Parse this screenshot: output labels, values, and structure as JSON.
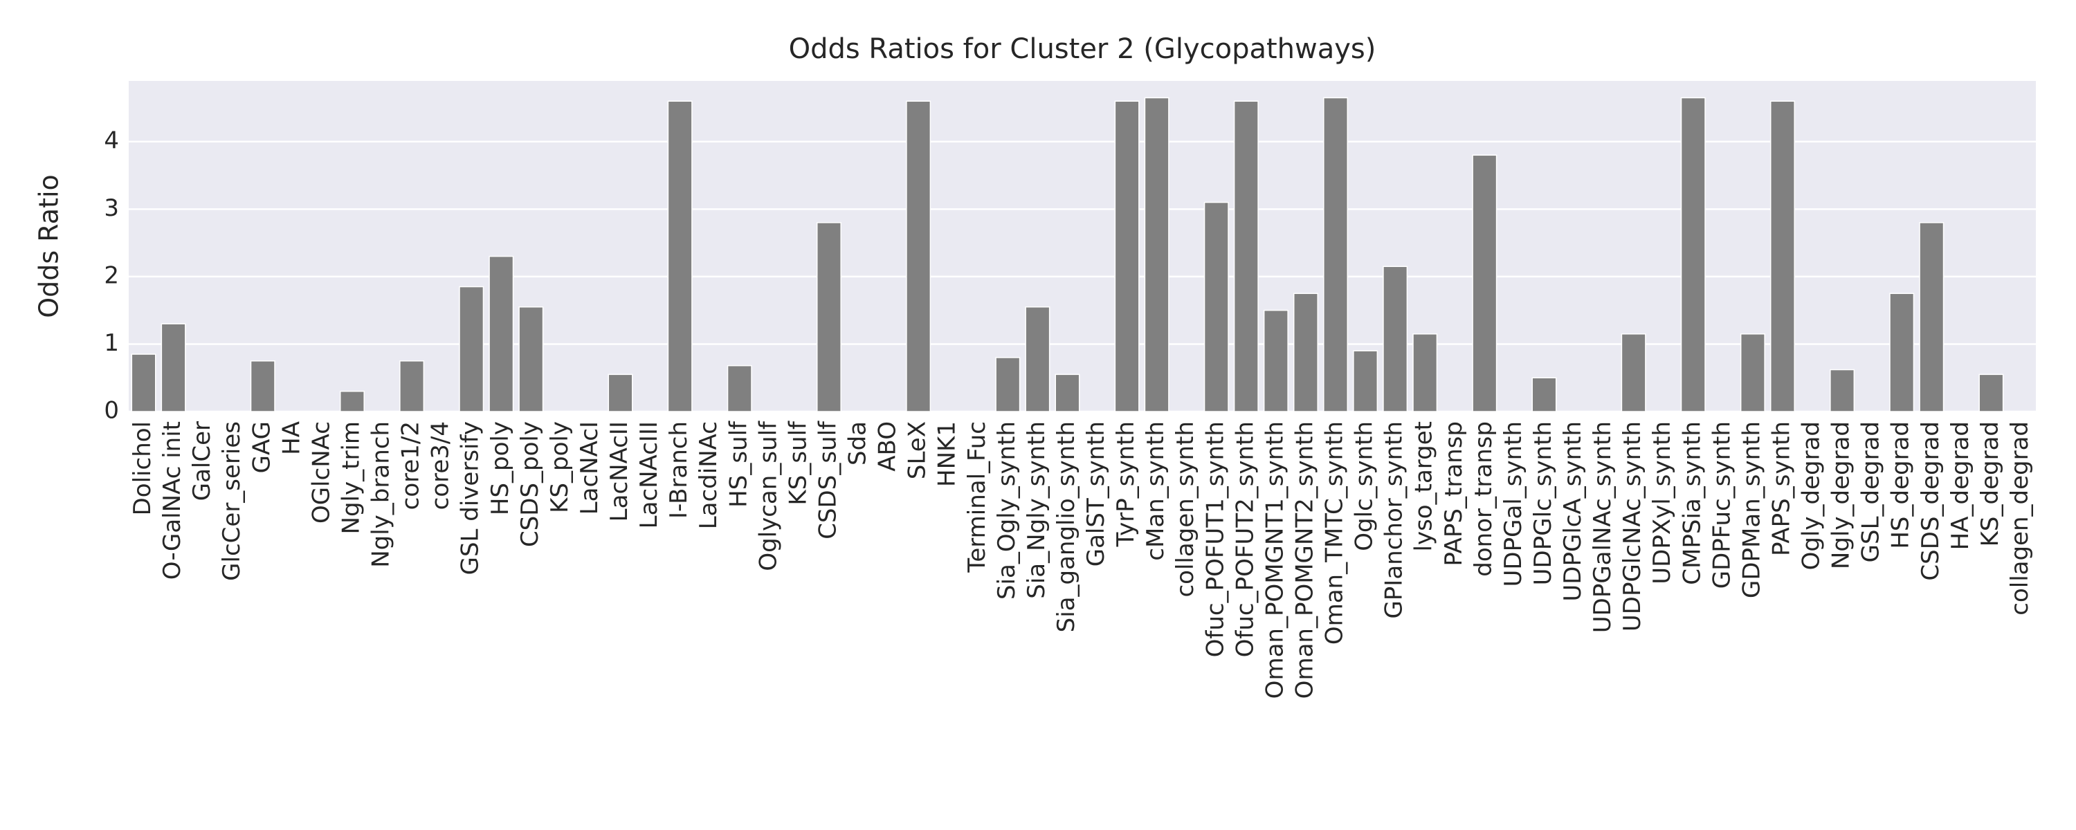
{
  "chart_data": {
    "type": "bar",
    "title": "Odds Ratios for Cluster 2 (Glycopathways)",
    "y_label": "Odds Ratio",
    "categories": [
      "Dolichol",
      "O-GalNAc init",
      "GalCer",
      "GlcCer_series",
      "GAG",
      "HA",
      "OGlcNAc",
      "Ngly_trim",
      "Ngly_branch",
      "core1/2",
      "core3/4",
      "GSL diversify",
      "HS_poly",
      "CSDS_poly",
      "KS_poly",
      "LacNAcI",
      "LacNAcII",
      "LacNAcIII",
      "I-Branch",
      "LacdiNAc",
      "HS_sulf",
      "Oglycan_sulf",
      "KS_sulf",
      "CSDS_sulf",
      "Sda",
      "ABO",
      "SLeX",
      "HNK1",
      "Terminal_Fuc",
      "Sia_Ogly_synth",
      "Sia_Ngly_synth",
      "Sia_ganglio_synth",
      "GalST_synth",
      "TyrP_synth",
      "cMan_synth",
      "collagen_synth",
      "Ofuc_POFUT1_synth",
      "Ofuc_POFUT2_synth",
      "Oman_POMGNT1_synth",
      "Oman_POMGNT2_synth",
      "Oman_TMTC_synth",
      "Oglc_synth",
      "GPIanchor_synth",
      "lyso_target",
      "PAPS_transp",
      "donor_transp",
      "UDPGal_synth",
      "UDPGlc_synth",
      "UDPGlcA_synth",
      "UDPGalNAc_synth",
      "UDPGlcNAc_synth",
      "UDPXyl_synth",
      "CMPSia_synth",
      "GDPFuc_synth",
      "GDPMan_synth",
      "PAPS_synth",
      "Ogly_degrad",
      "Ngly_degrad",
      "GSL_degrad",
      "HS_degrad",
      "CSDS_degrad",
      "HA_degrad",
      "KS_degrad",
      "collagen_degrad"
    ],
    "values": [
      0.85,
      1.3,
      0,
      0,
      0.75,
      0,
      0,
      0.3,
      0,
      0.75,
      0,
      1.85,
      2.3,
      1.55,
      0,
      0,
      0.55,
      0,
      4.6,
      0,
      0.68,
      0,
      0,
      2.8,
      0,
      0,
      4.6,
      0,
      0,
      0.8,
      1.55,
      0.55,
      0,
      4.6,
      4.65,
      0,
      3.1,
      4.6,
      1.5,
      1.75,
      4.65,
      0.9,
      2.15,
      1.15,
      0,
      3.8,
      0,
      0.5,
      0,
      0,
      1.15,
      0,
      4.65,
      0,
      1.15,
      4.6,
      0,
      0.62,
      0,
      1.75,
      2.8,
      0,
      0.55,
      0
    ],
    "color": "#808080",
    "ylim": [
      0,
      4.9
    ],
    "yticks": [
      0,
      1,
      2,
      3,
      4
    ],
    "grid": true
  }
}
